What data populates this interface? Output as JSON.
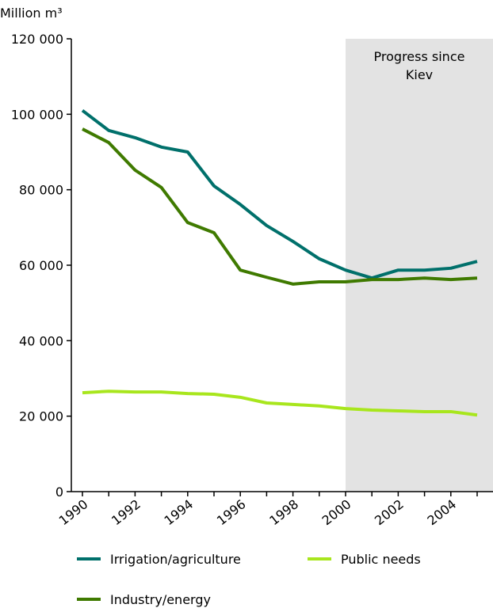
{
  "chart_data": {
    "type": "line",
    "ylabel": "Million m³",
    "ylim": [
      0,
      120000
    ],
    "yticks": [
      0,
      20000,
      40000,
      60000,
      80000,
      100000,
      120000
    ],
    "ytick_labels": [
      "0",
      "20 000",
      "40 000",
      "60 000",
      "80 000",
      "100 000",
      "120 000"
    ],
    "x": [
      1990,
      1991,
      1992,
      1993,
      1994,
      1995,
      1996,
      1997,
      1998,
      1999,
      2000,
      2001,
      2002,
      2003,
      2004,
      2005
    ],
    "xtick_labels": [
      "1990",
      "1992",
      "1994",
      "1996",
      "1998",
      "2000",
      "2002",
      "2004"
    ],
    "xtick_values": [
      1990,
      1992,
      1994,
      1996,
      1998,
      2000,
      2002,
      2004
    ],
    "shaded_region": {
      "from": 2000,
      "to": 2005.5,
      "label_line1": "Progress since",
      "label_line2": "Kiev",
      "color": "#e3e3e3"
    },
    "series": [
      {
        "name": "Irrigation/agriculture",
        "color": "#00706b",
        "values": [
          101000,
          95700,
          93800,
          91300,
          90000,
          81000,
          76100,
          70500,
          66300,
          61700,
          58700,
          56600,
          58700,
          58700,
          59200,
          61000
        ]
      },
      {
        "name": "Industry/energy",
        "color": "#3f7a00",
        "values": [
          96100,
          92500,
          85200,
          80600,
          71300,
          68600,
          58700,
          56800,
          55000,
          55600,
          55600,
          56200,
          56200,
          56600,
          56200,
          56600
        ]
      },
      {
        "name": "Public needs",
        "color": "#a8e61d",
        "values": [
          26200,
          26600,
          26400,
          26400,
          26000,
          25800,
          25000,
          23500,
          23100,
          22700,
          22000,
          21600,
          21400,
          21200,
          21200,
          20300
        ]
      }
    ],
    "legend": "bottom"
  }
}
